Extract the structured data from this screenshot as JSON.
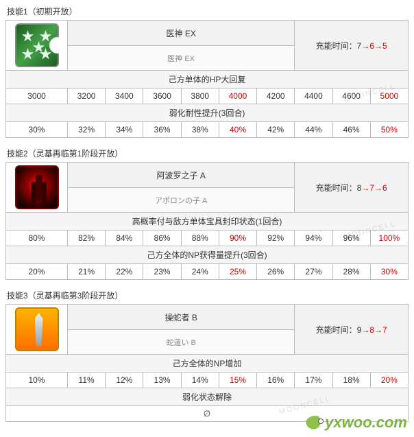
{
  "colors": {
    "border": "#bbbbbb",
    "header_bg": "#f2f2f2",
    "effect_bg": "#f5f5f5",
    "text": "#333333",
    "red": "#cc0000"
  },
  "skills": [
    {
      "title": "技能1（初期开放）",
      "icon": "icon1",
      "name_cn": "医神 EX",
      "name_jp": "医神 EX",
      "charge_label": "充能时间：",
      "charge_seq": [
        "7",
        "6",
        "5"
      ],
      "charge_red_from": 1,
      "effects": [
        {
          "label": "己方单体的HP大回复",
          "values": [
            "3000",
            "3200",
            "3400",
            "3600",
            "3800",
            "4000",
            "4200",
            "4400",
            "4600",
            "5000"
          ],
          "red_idx": [
            5,
            9
          ]
        },
        {
          "label": "弱化耐性提升(3回合)",
          "values": [
            "30%",
            "32%",
            "34%",
            "36%",
            "38%",
            "40%",
            "42%",
            "44%",
            "46%",
            "50%"
          ],
          "red_idx": [
            5,
            9
          ]
        }
      ]
    },
    {
      "title": "技能2（灵基再临第1阶段开放）",
      "icon": "icon2",
      "name_cn": "阿波罗之子 A",
      "name_jp": "アポロンの子 A",
      "charge_label": "充能时间：",
      "charge_seq": [
        "8",
        "7",
        "6"
      ],
      "charge_red_from": 1,
      "effects": [
        {
          "label": "高概率付与敌方单体宝具封印状态(1回合)",
          "values": [
            "80%",
            "82%",
            "84%",
            "86%",
            "88%",
            "90%",
            "92%",
            "94%",
            "96%",
            "100%"
          ],
          "red_idx": [
            5,
            9
          ]
        },
        {
          "label": "己方全体的NP获得量提升(3回合)",
          "values": [
            "20%",
            "21%",
            "22%",
            "23%",
            "24%",
            "25%",
            "26%",
            "27%",
            "28%",
            "30%"
          ],
          "red_idx": [
            5,
            9
          ]
        }
      ]
    },
    {
      "title": "技能3（灵基再临第3阶段开放）",
      "icon": "icon3",
      "name_cn": "操蛇者 B",
      "name_jp": "蛇遣い B",
      "charge_label": "充能时间：",
      "charge_seq": [
        "9",
        "8",
        "7"
      ],
      "charge_red_from": 1,
      "effects": [
        {
          "label": "己方全体的NP增加",
          "values": [
            "10%",
            "11%",
            "12%",
            "13%",
            "14%",
            "15%",
            "16%",
            "17%",
            "18%",
            "20%"
          ],
          "red_idx": [
            5,
            9
          ]
        },
        {
          "label": "弱化状态解除",
          "values": [
            "∅"
          ],
          "full_span": true
        }
      ]
    }
  ],
  "footer_brand": "yxwoo.com"
}
